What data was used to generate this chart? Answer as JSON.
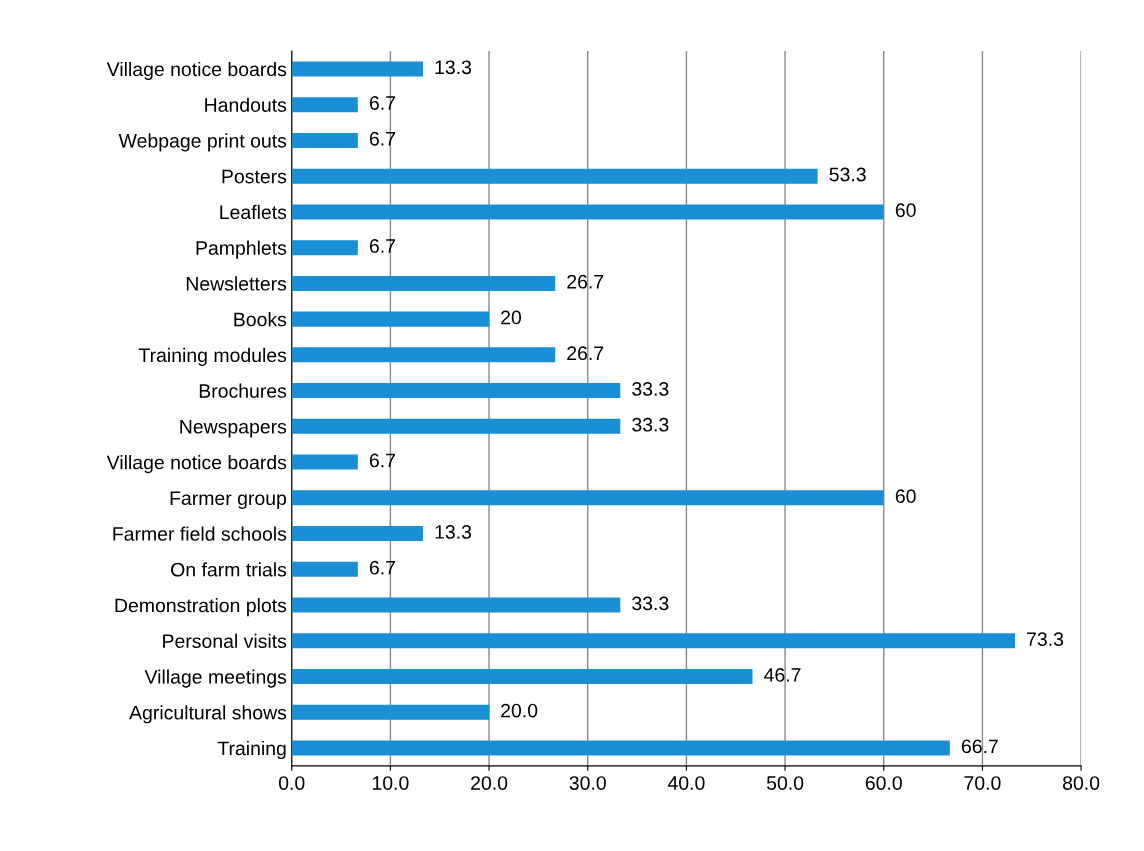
{
  "chart_data": {
    "type": "bar",
    "orientation": "horizontal",
    "categories": [
      "Village notice boards",
      "Handouts",
      "Webpage print outs",
      "Posters",
      "Leaflets",
      "Pamphlets",
      "Newsletters",
      "Books",
      "Training modules",
      "Brochures",
      "Newspapers",
      "Village notice boards",
      "Farmer group",
      "Farmer field schools",
      "On farm trials",
      "Demonstration plots",
      "Personal visits",
      "Village meetings",
      "Agricultural shows",
      "Training"
    ],
    "values": [
      13.3,
      6.7,
      6.7,
      53.3,
      60,
      6.7,
      26.7,
      20,
      26.7,
      33.3,
      33.3,
      6.7,
      60,
      13.3,
      6.7,
      33.3,
      73.3,
      46.7,
      20.0,
      66.7
    ],
    "value_labels": [
      "13.3",
      "6.7",
      "6.7",
      "53.3",
      "60",
      "6.7",
      "26.7",
      "20",
      "26.7",
      "33.3",
      "33.3",
      "6.7",
      "60",
      "13.3",
      "6.7",
      "33.3",
      "73.3",
      "46.7",
      "20.0",
      "66.7"
    ],
    "color": "#1a8fd6",
    "xlim": [
      0,
      80
    ],
    "xticks": [
      {
        "value": 0,
        "label": "0.0"
      },
      {
        "value": 10,
        "label": "10.0"
      },
      {
        "value": 20,
        "label": "20.0"
      },
      {
        "value": 30,
        "label": "30.0"
      },
      {
        "value": 40,
        "label": "40.0"
      },
      {
        "value": 50,
        "label": "50.0"
      },
      {
        "value": 60,
        "label": "60.0"
      },
      {
        "value": 70,
        "label": "70.0"
      },
      {
        "value": 80,
        "label": "80.0"
      }
    ],
    "grid": "x"
  }
}
